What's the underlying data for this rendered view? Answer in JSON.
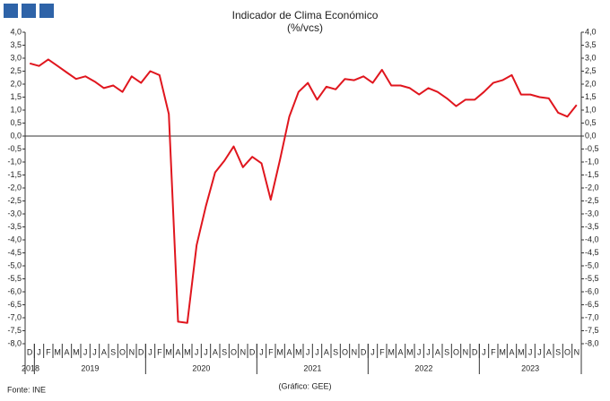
{
  "chart_data": {
    "type": "line",
    "title": "Indicador de Clima Económico",
    "subtitle": "(%/vcs)",
    "source": "Fonte: INE",
    "credit": "(Gráfico: GEE)",
    "groups": [
      {
        "label": "2018",
        "categories": [
          "D"
        ]
      },
      {
        "label": "2019",
        "categories": [
          "J",
          "F",
          "M",
          "A",
          "M",
          "J",
          "J",
          "A",
          "S",
          "O",
          "N",
          "D"
        ]
      },
      {
        "label": "2020",
        "categories": [
          "J",
          "F",
          "M",
          "A",
          "M",
          "J",
          "J",
          "A",
          "S",
          "O",
          "N",
          "D"
        ]
      },
      {
        "label": "2021",
        "categories": [
          "J",
          "F",
          "M",
          "A",
          "M",
          "J",
          "J",
          "A",
          "S",
          "O",
          "N",
          "D"
        ]
      },
      {
        "label": "2022",
        "categories": [
          "J",
          "F",
          "M",
          "A",
          "M",
          "J",
          "J",
          "A",
          "S",
          "O",
          "N",
          "D"
        ]
      },
      {
        "label": "2023",
        "categories": [
          "J",
          "F",
          "M",
          "A",
          "M",
          "J",
          "J",
          "A",
          "S",
          "O",
          "N"
        ]
      }
    ],
    "series": [
      {
        "name": "Indicador de Clima Económico",
        "color": "#e0161e",
        "values": [
          2.8,
          2.7,
          2.95,
          2.7,
          2.45,
          2.2,
          2.3,
          2.1,
          1.85,
          1.95,
          1.7,
          2.3,
          2.05,
          2.5,
          2.35,
          0.85,
          -7.15,
          -7.2,
          -4.2,
          -2.7,
          -1.4,
          -0.95,
          -0.4,
          -1.2,
          -0.8,
          -1.05,
          -2.45,
          -0.9,
          0.75,
          1.7,
          2.05,
          1.4,
          1.9,
          1.8,
          2.2,
          2.15,
          2.3,
          2.05,
          2.55,
          1.95,
          1.95,
          1.85,
          1.6,
          1.85,
          1.7,
          1.45,
          1.15,
          1.4,
          1.4,
          1.7,
          2.05,
          2.15,
          2.35,
          1.6,
          1.6,
          1.5,
          1.45,
          0.9,
          0.75,
          1.2
        ]
      }
    ],
    "ylim": [
      -8,
      4
    ],
    "yticks": [
      {
        "value": 4,
        "label": "4,0"
      },
      {
        "value": 3.5,
        "label": "3,5"
      },
      {
        "value": 3,
        "label": "3,0"
      },
      {
        "value": 2.5,
        "label": "2,5"
      },
      {
        "value": 2,
        "label": "2,0"
      },
      {
        "value": 1.5,
        "label": "1,5"
      },
      {
        "value": 1,
        "label": "1,0"
      },
      {
        "value": 0.5,
        "label": "0,5"
      },
      {
        "value": 0,
        "label": "0,0"
      },
      {
        "value": -0.5,
        "label": "-0,5"
      },
      {
        "value": -1,
        "label": "-1,0"
      },
      {
        "value": -1.5,
        "label": "-1,5"
      },
      {
        "value": -2,
        "label": "-2,0"
      },
      {
        "value": -2.5,
        "label": "-2,5"
      },
      {
        "value": -3,
        "label": "-3,0"
      },
      {
        "value": -3.5,
        "label": "-3,5"
      },
      {
        "value": -4,
        "label": "-4,0"
      },
      {
        "value": -4.5,
        "label": "-4,5"
      },
      {
        "value": -5,
        "label": "-5,0"
      },
      {
        "value": -5.5,
        "label": "-5,5"
      },
      {
        "value": -6,
        "label": "-6,0"
      },
      {
        "value": -6.5,
        "label": "-6,5"
      },
      {
        "value": -7,
        "label": "-7,0"
      },
      {
        "value": -7.5,
        "label": "-7,5"
      },
      {
        "value": -8,
        "label": "-8,0"
      }
    ],
    "y2lim": [
      -8,
      4
    ],
    "y2ticks": [
      {
        "value": 4,
        "label": "4,0"
      },
      {
        "value": 3.5,
        "label": "3,5"
      },
      {
        "value": 3,
        "label": "3,0"
      },
      {
        "value": 2.5,
        "label": "2,5"
      },
      {
        "value": 2,
        "label": "2,0"
      },
      {
        "value": 1.5,
        "label": "1,5"
      },
      {
        "value": 1,
        "label": "1,0"
      },
      {
        "value": 0.5,
        "label": "0,5"
      },
      {
        "value": 0,
        "label": "0,0"
      },
      {
        "value": -0.5,
        "label": "-0,5"
      },
      {
        "value": -1,
        "label": "-1,0"
      },
      {
        "value": -1.5,
        "label": "-1,5"
      },
      {
        "value": -2,
        "label": "-2,0"
      },
      {
        "value": -2.5,
        "label": "-2,5"
      },
      {
        "value": -3,
        "label": "-3,0"
      },
      {
        "value": -3.5,
        "label": "-3,5"
      },
      {
        "value": -4,
        "label": "-4,0"
      },
      {
        "value": -4.5,
        "label": "-4,5"
      },
      {
        "value": -5,
        "label": "-5,0"
      },
      {
        "value": -5.5,
        "label": "-5,5"
      },
      {
        "value": -6,
        "label": "-6,0"
      },
      {
        "value": -6.5,
        "label": "-6,5"
      },
      {
        "value": -7,
        "label": "-7,0"
      },
      {
        "value": -7.5,
        "label": "-7,5"
      },
      {
        "value": -8,
        "label": "-8,0"
      }
    ],
    "grid": false
  }
}
